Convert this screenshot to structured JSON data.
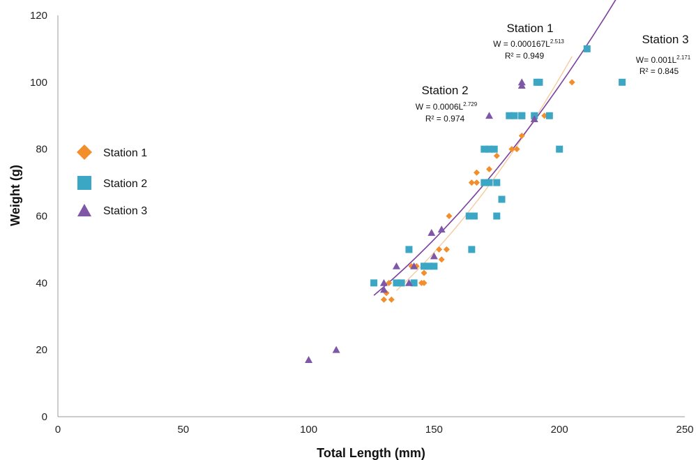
{
  "chart_data": {
    "type": "scatter",
    "xlabel": "Total Length (mm)",
    "ylabel": "Weight (g)",
    "xlim": [
      0,
      250
    ],
    "ylim": [
      0,
      120
    ],
    "x_ticks": [
      "0",
      "50",
      "100",
      "150",
      "200",
      "250"
    ],
    "y_ticks": [
      "0",
      "20",
      "40",
      "60",
      "80",
      "100",
      "120"
    ],
    "grid": false,
    "legend_placement": "left",
    "series": [
      {
        "name": "Station 1",
        "marker": "diamond",
        "color": "#F28E2B",
        "trend_color": "#F7C79A",
        "points": [
          [
            130,
            35
          ],
          [
            131,
            37
          ],
          [
            132,
            40
          ],
          [
            133,
            35
          ],
          [
            135,
            40
          ],
          [
            136,
            40
          ],
          [
            141,
            45
          ],
          [
            143,
            45
          ],
          [
            145,
            40
          ],
          [
            146,
            40
          ],
          [
            146,
            43
          ],
          [
            148,
            45
          ],
          [
            150,
            45
          ],
          [
            152,
            50
          ],
          [
            153,
            47
          ],
          [
            155,
            50
          ],
          [
            156,
            60
          ],
          [
            165,
            70
          ],
          [
            167,
            73
          ],
          [
            167,
            70
          ],
          [
            172,
            74
          ],
          [
            175,
            78
          ],
          [
            181,
            80
          ],
          [
            183,
            80
          ],
          [
            185,
            84
          ],
          [
            190,
            89
          ],
          [
            194,
            90
          ],
          [
            205,
            100
          ]
        ],
        "equation_prefix": "W = 0.000167L",
        "equation_exponent": "2.513",
        "r2": "R² = 0.949",
        "trend": {
          "a": 0.000167,
          "b": 2.513,
          "x_from": 135,
          "x_to": 205
        }
      },
      {
        "name": "Station 2",
        "marker": "square",
        "color": "#3BA7C4",
        "trend_color": "#5B9BD5",
        "points": [
          [
            126,
            40
          ],
          [
            135,
            40
          ],
          [
            137,
            40
          ],
          [
            140,
            50
          ],
          [
            142,
            40
          ],
          [
            146,
            45
          ],
          [
            148,
            45
          ],
          [
            150,
            45
          ],
          [
            164,
            60
          ],
          [
            165,
            50
          ],
          [
            166,
            60
          ],
          [
            170,
            80
          ],
          [
            170,
            70
          ],
          [
            172,
            80
          ],
          [
            172,
            70
          ],
          [
            174,
            80
          ],
          [
            175,
            70
          ],
          [
            175,
            60
          ],
          [
            177,
            65
          ],
          [
            180,
            90
          ],
          [
            182,
            90
          ],
          [
            185,
            90
          ],
          [
            185,
            90
          ],
          [
            190,
            90
          ],
          [
            191,
            100
          ],
          [
            192,
            100
          ],
          [
            196,
            90
          ],
          [
            200,
            80
          ],
          [
            211,
            110
          ],
          [
            225,
            100
          ]
        ],
        "equation_prefix": "W = 0.0006L",
        "equation_exponent": "2.729",
        "r2": "R² = 0.974",
        "trend": {
          "a": 0.0006,
          "b": 2.729,
          "x_from": 100,
          "x_to": 188
        }
      },
      {
        "name": "Station 3",
        "marker": "triangle",
        "color": "#7E57A6",
        "trend_color": "#7B3FA0",
        "points": [
          [
            100,
            17
          ],
          [
            111,
            20
          ],
          [
            130,
            40
          ],
          [
            130,
            38
          ],
          [
            135,
            45
          ],
          [
            140,
            40
          ],
          [
            142,
            45
          ],
          [
            149,
            55
          ],
          [
            150,
            48
          ],
          [
            153,
            56
          ],
          [
            172,
            90
          ],
          [
            185,
            100
          ],
          [
            185,
            99
          ],
          [
            190,
            89
          ]
        ],
        "equation_prefix": "W= 0.001L",
        "equation_exponent": "2.171",
        "r2": "R² = 0.845",
        "trend": {
          "a": 0.001,
          "b": 2.171,
          "x_from": 126,
          "x_to": 225
        }
      }
    ]
  }
}
